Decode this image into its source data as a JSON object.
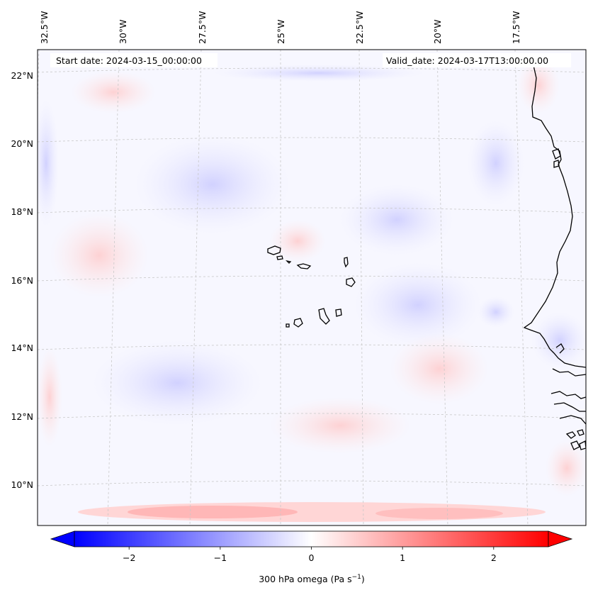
{
  "map": {
    "start_label": "Start date: 2024-03-15_00:00:00",
    "valid_label": "Valid_date: 2024-03-17T13:00:00.00",
    "lon_labels": [
      "32.5°W",
      "30°W",
      "27.5°W",
      "25°W",
      "22.5°W",
      "20°W",
      "17.5°W"
    ],
    "lat_labels": [
      "22°N",
      "20°N",
      "18°N",
      "16°N",
      "14°N",
      "12°N",
      "10°N"
    ],
    "field": "300 hPa omega"
  },
  "colorbar": {
    "label": "300 hPa omega (Pa s",
    "label_sup": "−1",
    "label_close": ")",
    "ticks": [
      "−2",
      "−1",
      "0",
      "1",
      "2"
    ],
    "tick_values": [
      -2,
      -1,
      0,
      1,
      2
    ],
    "range": [
      -2.6,
      2.6
    ],
    "colormap": "bwr",
    "colors": {
      "min": "#0000ff",
      "mid": "#ffffff",
      "max": "#ff0000"
    }
  }
}
